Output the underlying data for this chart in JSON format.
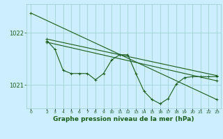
{
  "background_color": "#cceeff",
  "grid_color": "#99cccc",
  "line_color": "#1a5c1a",
  "title": "Graphe pression niveau de la mer (hPa)",
  "title_fontsize": 6.5,
  "xlim": [
    -0.5,
    23.5
  ],
  "ylim": [
    1020.55,
    1022.55
  ],
  "yticks": [
    1021,
    1022
  ],
  "xticks": [
    0,
    2,
    3,
    4,
    5,
    6,
    7,
    8,
    9,
    10,
    11,
    12,
    13,
    14,
    15,
    16,
    17,
    18,
    19,
    20,
    21,
    22,
    23
  ],
  "trend1_x": [
    0,
    23
  ],
  "trend1_y": [
    1022.38,
    1020.72
  ],
  "trend2_x": [
    2,
    23
  ],
  "trend2_y": [
    1021.88,
    1021.18
  ],
  "trend3_x": [
    2,
    23
  ],
  "trend3_y": [
    1021.82,
    1021.08
  ],
  "main_x": [
    2,
    3,
    4,
    5,
    6,
    7,
    8,
    9,
    10,
    11,
    12,
    13,
    14,
    15,
    16,
    17,
    18,
    19,
    20,
    21,
    22,
    23
  ],
  "main_y": [
    1021.85,
    1021.68,
    1021.28,
    1021.22,
    1021.22,
    1021.22,
    1021.1,
    1021.22,
    1021.48,
    1021.58,
    1021.58,
    1021.22,
    1020.88,
    1020.72,
    1020.64,
    1020.74,
    1021.02,
    1021.14,
    1021.16,
    1021.16,
    1021.16,
    1021.16
  ]
}
